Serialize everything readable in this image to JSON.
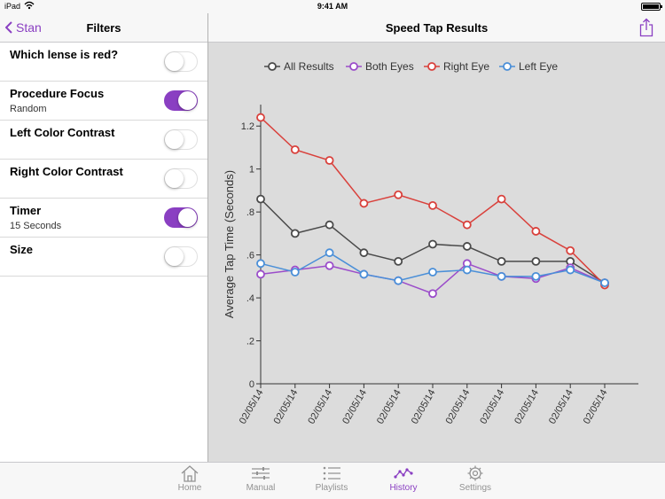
{
  "status": {
    "carrier": "iPad",
    "time": "9:41 AM"
  },
  "left_panel": {
    "back_label": "Stan",
    "title": "Filters",
    "rows": [
      {
        "label": "Which lense is red?",
        "sub": "",
        "on": false
      },
      {
        "label": "Procedure Focus",
        "sub": "Random",
        "on": true
      },
      {
        "label": "Left Color Contrast",
        "sub": "",
        "on": false
      },
      {
        "label": "Right Color Contrast",
        "sub": "",
        "on": false
      },
      {
        "label": "Timer",
        "sub": "15 Seconds",
        "on": true
      },
      {
        "label": "Size",
        "sub": "",
        "on": false
      }
    ]
  },
  "right_panel": {
    "title": "Speed Tap Results"
  },
  "colors": {
    "accent": "#8a3fc2",
    "all": "#4a4a4a",
    "both": "#9b4dca",
    "right": "#d9413c",
    "left": "#4a8fd8"
  },
  "chart_data": {
    "type": "line",
    "categories": [
      "02/05/14",
      "02/05/14",
      "02/05/14",
      "02/05/14",
      "02/05/14",
      "02/05/14",
      "02/05/14",
      "02/05/14",
      "02/05/14",
      "02/05/14",
      "02/05/14"
    ],
    "ylabel": "Average Tap Time (Seconds)",
    "ylim": [
      0,
      1.3
    ],
    "yticks": [
      0,
      0.2,
      0.4,
      0.6,
      0.8,
      1.0,
      1.2
    ],
    "ytick_labels": [
      "0",
      ".2",
      ".4",
      ".6",
      ".8",
      "1",
      "1.2"
    ],
    "legend_position": "top",
    "grid": false,
    "series": [
      {
        "name": "All Results",
        "color": "#4a4a4a",
        "values": [
          0.86,
          0.7,
          0.74,
          0.61,
          0.57,
          0.65,
          0.64,
          0.57,
          0.57,
          0.57,
          0.47
        ]
      },
      {
        "name": "Both Eyes",
        "color": "#9b4dca",
        "values": [
          0.51,
          0.53,
          0.55,
          0.51,
          0.48,
          0.42,
          0.56,
          0.5,
          0.49,
          0.54,
          0.47
        ]
      },
      {
        "name": "Right Eye",
        "color": "#d9413c",
        "values": [
          1.24,
          1.09,
          1.04,
          0.84,
          0.88,
          0.83,
          0.74,
          0.86,
          0.71,
          0.62,
          0.46
        ]
      },
      {
        "name": "Left Eye",
        "color": "#4a8fd8",
        "values": [
          0.56,
          0.52,
          0.61,
          0.51,
          0.48,
          0.52,
          0.53,
          0.5,
          0.5,
          0.53,
          0.47
        ]
      }
    ]
  },
  "tabs": [
    {
      "label": "Home",
      "icon": "home-icon",
      "active": false
    },
    {
      "label": "Manual",
      "icon": "sliders-icon",
      "active": false
    },
    {
      "label": "Playlists",
      "icon": "list-icon",
      "active": false
    },
    {
      "label": "History",
      "icon": "history-chart-icon",
      "active": true
    },
    {
      "label": "Settings",
      "icon": "gear-icon",
      "active": false
    }
  ]
}
